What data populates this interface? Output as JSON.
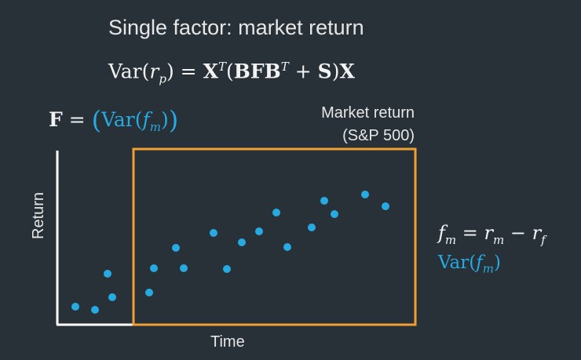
{
  "title": "Single factor: market return",
  "formula_main": {
    "var": "Var",
    "lp": "(",
    "r": "r",
    "p": "p",
    "rp": ")",
    "eq": " = ",
    "X": "X",
    "T": "T",
    "paren_open": "(",
    "BFB": "BFB",
    "T2": "T",
    "plus": " + ",
    "S": "S",
    "paren_close": ")",
    "X2": "X"
  },
  "formula_f": {
    "F": "F",
    "eq": " = ",
    "lp": "(",
    "var": "Var",
    "lp2": "(",
    "f": "f",
    "m": "m",
    "rp2": ")",
    "rp": ")"
  },
  "legend": {
    "line1": "Market return",
    "line2": "(S&P 500)"
  },
  "side": {
    "f": "f",
    "m": "m",
    "eq": " = ",
    "r": "r",
    "m2": "m",
    "minus": " − ",
    "r2": "r",
    "f_sub": "f",
    "var": "Var",
    "lp": "(",
    "vf": "f",
    "vm": "m",
    "rp": ")"
  },
  "axis": {
    "ylabel": "Return",
    "xlabel": "Time"
  },
  "colors": {
    "background": "#283138",
    "point": "#27a9e1",
    "box": "#f0a033",
    "axis": "#ffffff"
  },
  "chart_data": {
    "type": "scatter",
    "xlabel": "Time",
    "ylabel": "Return",
    "points": [
      [
        96,
        391
      ],
      [
        121,
        395
      ],
      [
        143,
        379
      ],
      [
        137,
        349
      ],
      [
        190,
        373
      ],
      [
        196,
        342
      ],
      [
        224,
        316
      ],
      [
        234,
        342
      ],
      [
        272,
        297
      ],
      [
        289,
        343
      ],
      [
        308,
        309
      ],
      [
        330,
        295
      ],
      [
        352,
        271
      ],
      [
        366,
        315
      ],
      [
        397,
        290
      ],
      [
        413,
        256
      ],
      [
        426,
        273
      ],
      [
        465,
        248
      ],
      [
        491,
        263
      ]
    ]
  }
}
